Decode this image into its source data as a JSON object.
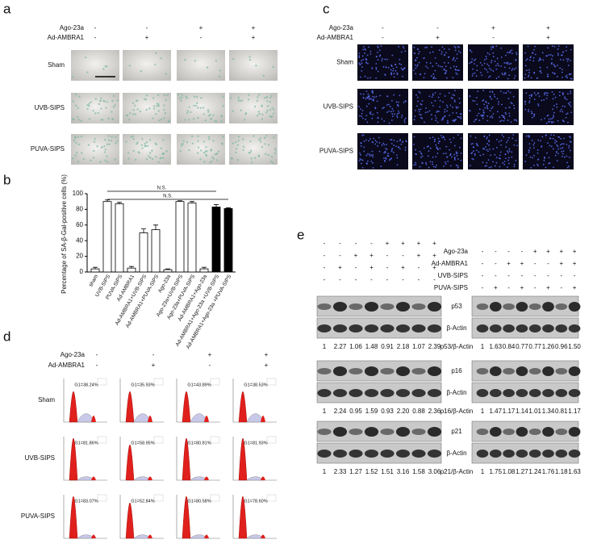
{
  "panel_a": {
    "label": "a",
    "factors": [
      "Ago-23a",
      "Ad-AMBRA1"
    ],
    "conditions": [
      [
        "-",
        "-",
        "+",
        "+"
      ],
      [
        "-",
        "+",
        "-",
        "+"
      ]
    ],
    "rows": [
      "Sham",
      "UVB-SIPS",
      "PUVA-SIPS"
    ]
  },
  "panel_c": {
    "label": "c",
    "factors": [
      "Ago-23a",
      "Ad-AMBRA1"
    ],
    "conditions": [
      [
        "-",
        "-",
        "+",
        "+"
      ],
      [
        "-",
        "+",
        "-",
        "+"
      ]
    ],
    "rows": [
      "Sham",
      "UVB-SIPS",
      "PUVA-SIPS"
    ]
  },
  "chart_data": {
    "type": "bar",
    "panel_label": "b",
    "ylabel": "Percentage of SA-β-Gal-positive cells (%)",
    "categories": [
      "sham",
      "UVB-SIPS",
      "PUVA-SIPS",
      "Ad-AMBRA1",
      "Ad-AMBRA1+UVB-SIPS",
      "Ad-AMBRA1+PUVA-SIPS",
      "Ago-23a",
      "Ago-23a+UVB-SIPS",
      "Ago-23a+PUVA-SIPS",
      "Ad-AMBRA1+Ago-23a",
      "Ad-AMBRA1+Ago-23a +UVB-SIPS",
      "Ad-AMBRA1+Ago-23a +PUVA-SIPS"
    ],
    "values": [
      4,
      90,
      87,
      5,
      50,
      54,
      3,
      90,
      88,
      4,
      83,
      81
    ],
    "errors": [
      2,
      2,
      2,
      2,
      5,
      6,
      1,
      1,
      2,
      2,
      3,
      1
    ],
    "colors": [
      "#ffffff",
      "#ffffff",
      "#ffffff",
      "#ffffff",
      "#ffffff",
      "#ffffff",
      "#ffffff",
      "#ffffff",
      "#ffffff",
      "#ffffff",
      "#000000",
      "#000000"
    ],
    "ylim": [
      0,
      100
    ],
    "yticks": [
      0,
      20,
      40,
      60,
      80,
      100
    ],
    "annotations": [
      "N.S.",
      "N.S."
    ]
  },
  "panel_d": {
    "label": "d",
    "factors": [
      "Ago-23a",
      "Ad-AMBRA1"
    ],
    "conditions": [
      [
        "-",
        "-",
        "+",
        "+"
      ],
      [
        "-",
        "+",
        "-",
        "+"
      ]
    ],
    "rows": [
      {
        "name": "Sham",
        "g1": [
          "G1=38.24%",
          "G1=35.93%",
          "G1=43.89%",
          "G1=38.53%"
        ]
      },
      {
        "name": "UVB-SIPS",
        "g1": [
          "G1=81.86%",
          "G1=58.95%",
          "G1=80.81%",
          "G1=81.93%"
        ]
      },
      {
        "name": "PUVA-SIPS",
        "g1": [
          "G1=83.07%",
          "G1=52.84%",
          "G1=80.58%",
          "G1=78.60%"
        ]
      }
    ]
  },
  "panel_e": {
    "label": "e",
    "factors": [
      "Ago-23a",
      "Ad-AMBRA1",
      "UVB-SIPS",
      "PUVA-SIPS"
    ],
    "left_conditions": [
      [
        "-",
        "-",
        "-",
        "-",
        "+",
        "+",
        "+",
        "+"
      ],
      [
        "-",
        "-",
        "+",
        "+",
        "-",
        "-",
        "+",
        "+"
      ],
      [
        "-",
        "+",
        "-",
        "+",
        "-",
        "+",
        "-",
        "+"
      ],
      [
        "-",
        "-",
        "-",
        "-",
        "-",
        "-",
        "-",
        "-"
      ]
    ],
    "right_conditions": [
      [
        "-",
        "-",
        "-",
        "-",
        "+",
        "+",
        "+",
        "+"
      ],
      [
        "-",
        "-",
        "+",
        "+",
        "-",
        "-",
        "+",
        "+"
      ],
      [
        "-",
        "-",
        "-",
        "-",
        "-",
        "-",
        "-",
        "-"
      ],
      [
        "-",
        "+",
        "-",
        "+",
        "-",
        "+",
        "-",
        "+"
      ]
    ],
    "blots": [
      {
        "protein": "p53",
        "control": "β-Actin",
        "ratio_label": "p53/β-Actin",
        "left_ratios": [
          "1",
          "2.27",
          "1.06",
          "1.48",
          "0.91",
          "2.18",
          "1.07",
          "2.39"
        ],
        "right_ratios": [
          "1",
          "1.63",
          "0.84",
          "0.77",
          "0.77",
          "1.26",
          "0.96",
          "1.50"
        ]
      },
      {
        "protein": "p16",
        "control": "β-Actin",
        "ratio_label": "p16/β-Actin",
        "left_ratios": [
          "1",
          "2.24",
          "0.95",
          "1.59",
          "0.93",
          "2.20",
          "0.88",
          "2.36"
        ],
        "right_ratios": [
          "1",
          "1.47",
          "1.17",
          "1.14",
          "1.01",
          "1.34",
          "0.81",
          "1.17"
        ]
      },
      {
        "protein": "p21",
        "control": "β-Actin",
        "ratio_label": "p21/β-Actin",
        "left_ratios": [
          "1",
          "2.33",
          "1.27",
          "1.52",
          "1.51",
          "3.16",
          "1.58",
          "3.06"
        ],
        "right_ratios": [
          "1",
          "1.75",
          "1.08",
          "1.27",
          "1.24",
          "1.76",
          "1.18",
          "1.63"
        ]
      }
    ]
  }
}
